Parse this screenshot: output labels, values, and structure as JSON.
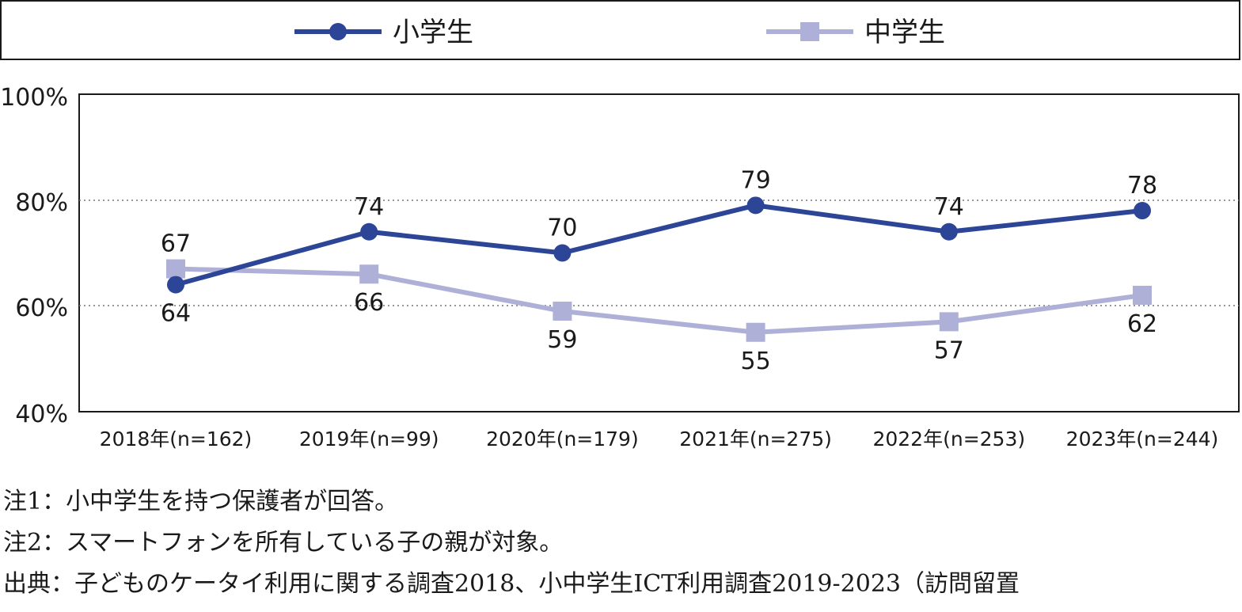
{
  "chart_data": {
    "type": "line",
    "categories": [
      "2018年(n=162)",
      "2019年(n=99)",
      "2020年(n=179)",
      "2021年(n=275)",
      "2022年(n=253)",
      "2023年(n=244)"
    ],
    "series": [
      {
        "name": "小学生",
        "values": [
          64,
          74,
          70,
          79,
          74,
          78
        ],
        "color": "#2d4596",
        "marker": "circle"
      },
      {
        "name": "中学生",
        "values": [
          67,
          66,
          59,
          55,
          57,
          62
        ],
        "color": "#aeb0d8",
        "marker": "square"
      }
    ],
    "yticks": [
      "40%",
      "60%",
      "80%",
      "100%"
    ],
    "ylim": [
      40,
      100
    ],
    "gridlines": [
      60,
      80
    ],
    "legend_position": "top"
  },
  "notes": [
    "注1：小中学生を持つ保護者が回答。",
    "注2：スマートフォンを所有している子の親が対象。",
    "出典：子どものケータイ利用に関する調査2018、小中学生ICT利用調査2019-2023（訪問留置"
  ]
}
